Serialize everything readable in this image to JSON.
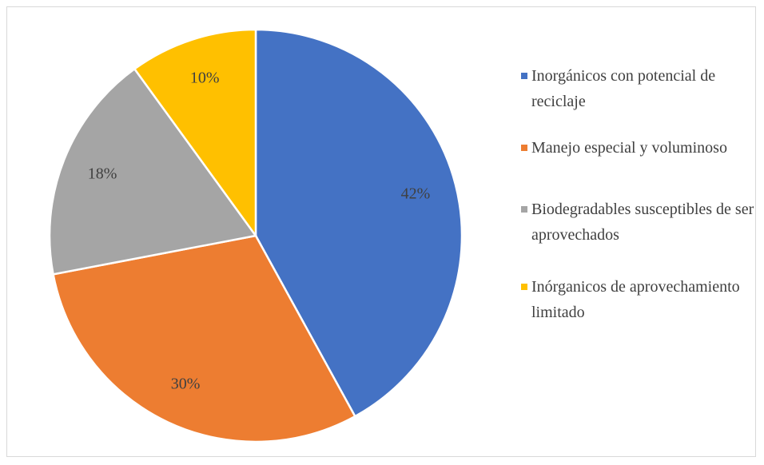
{
  "chart_data": {
    "type": "pie",
    "categories": [
      "Inorgánicos con potencial de reciclaje",
      "Manejo especial y voluminoso",
      "Biodegradables susceptibles de ser aprovechados",
      "Inórganicos de aprovechamiento limitado"
    ],
    "values": [
      42,
      30,
      18,
      10
    ],
    "value_labels": [
      "42%",
      "30%",
      "18%",
      "10%"
    ],
    "colors": [
      "#4472c4",
      "#ed7d31",
      "#a5a5a5",
      "#ffc000"
    ],
    "legend": "right"
  }
}
